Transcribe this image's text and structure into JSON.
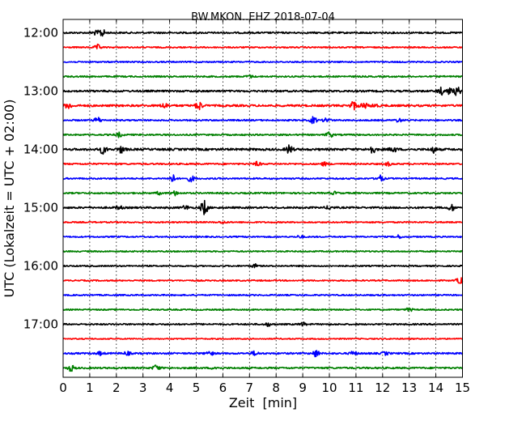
{
  "chart_data": {
    "type": "line",
    "title": "BW.MKON..EHZ 2018-07-04",
    "xlabel": "Zeit  [min]",
    "ylabel": "UTC (Lokalzeit = UTC + 02:00)",
    "xlim": [
      0,
      15
    ],
    "x_ticks": [
      "0",
      "1",
      "2",
      "3",
      "4",
      "5",
      "6",
      "7",
      "8",
      "9",
      "10",
      "11",
      "12",
      "13",
      "14",
      "15"
    ],
    "y_ticks": [
      "12:00",
      "13:00",
      "14:00",
      "15:00",
      "16:00",
      "17:00"
    ],
    "grid": "vertical dotted",
    "trace_colors": [
      "#000000",
      "#ff0000",
      "#0000ff",
      "#008000"
    ],
    "traces": [
      {
        "start": "12:00",
        "base": 1.0,
        "events": [
          [
            1.45,
            5.0
          ],
          [
            1.2,
            2.0
          ]
        ]
      },
      {
        "start": "12:15",
        "base": 0.8,
        "events": [
          [
            1.3,
            3.0
          ]
        ]
      },
      {
        "start": "12:30",
        "base": 0.8,
        "events": []
      },
      {
        "start": "12:45",
        "base": 0.9,
        "events": [
          [
            7.0,
            1.5
          ]
        ]
      },
      {
        "start": "13:00",
        "base": 1.1,
        "events": [
          [
            14.2,
            4.0
          ],
          [
            14.8,
            5.0
          ],
          [
            14.5,
            3.5
          ]
        ]
      },
      {
        "start": "13:15",
        "base": 1.2,
        "events": [
          [
            0.2,
            3.5
          ],
          [
            3.8,
            3.0
          ],
          [
            5.1,
            5.0
          ],
          [
            10.9,
            5.0
          ],
          [
            11.3,
            3.5
          ],
          [
            11.7,
            2.0
          ]
        ]
      },
      {
        "start": "13:30",
        "base": 0.9,
        "events": [
          [
            1.3,
            3.5
          ],
          [
            9.4,
            4.0
          ],
          [
            9.9,
            3.0
          ],
          [
            12.6,
            2.0
          ]
        ]
      },
      {
        "start": "13:45",
        "base": 0.9,
        "events": [
          [
            2.1,
            2.5
          ],
          [
            10.0,
            3.5
          ]
        ]
      },
      {
        "start": "14:00",
        "base": 1.3,
        "events": [
          [
            1.5,
            5.0
          ],
          [
            2.2,
            4.0
          ],
          [
            8.5,
            5.0
          ],
          [
            11.6,
            4.5
          ],
          [
            12.4,
            3.0
          ],
          [
            13.9,
            3.5
          ]
        ]
      },
      {
        "start": "14:15",
        "base": 0.9,
        "events": [
          [
            7.3,
            2.5
          ],
          [
            9.8,
            2.0
          ],
          [
            12.2,
            2.0
          ]
        ]
      },
      {
        "start": "14:30",
        "base": 0.9,
        "events": [
          [
            4.1,
            4.5
          ],
          [
            4.8,
            3.5
          ],
          [
            11.9,
            4.0
          ]
        ]
      },
      {
        "start": "14:45",
        "base": 0.9,
        "events": [
          [
            3.6,
            1.5
          ],
          [
            4.2,
            2.5
          ],
          [
            10.2,
            1.5
          ]
        ]
      },
      {
        "start": "15:00",
        "base": 1.1,
        "events": [
          [
            2.1,
            2.0
          ],
          [
            4.6,
            2.5
          ],
          [
            5.3,
            9.0
          ],
          [
            10.0,
            2.0
          ],
          [
            14.6,
            3.5
          ]
        ]
      },
      {
        "start": "15:15",
        "base": 0.8,
        "events": [
          [
            6.0,
            1.2
          ]
        ]
      },
      {
        "start": "15:30",
        "base": 0.8,
        "events": [
          [
            8.9,
            1.5
          ],
          [
            12.6,
            1.8
          ]
        ]
      },
      {
        "start": "15:45",
        "base": 0.8,
        "events": []
      },
      {
        "start": "16:00",
        "base": 0.8,
        "events": [
          [
            7.2,
            2.0
          ]
        ]
      },
      {
        "start": "16:15",
        "base": 0.8,
        "events": [
          [
            14.9,
            4.0
          ]
        ]
      },
      {
        "start": "16:30",
        "base": 0.8,
        "events": []
      },
      {
        "start": "16:45",
        "base": 0.8,
        "events": [
          [
            13.0,
            2.0
          ]
        ]
      },
      {
        "start": "17:00",
        "base": 0.9,
        "events": [
          [
            7.7,
            2.0
          ],
          [
            9.0,
            2.0
          ]
        ]
      },
      {
        "start": "17:15",
        "base": 0.7,
        "events": []
      },
      {
        "start": "17:30",
        "base": 1.0,
        "events": [
          [
            1.4,
            2.0
          ],
          [
            2.4,
            2.0
          ],
          [
            5.5,
            3.0
          ],
          [
            7.2,
            2.5
          ],
          [
            9.5,
            4.0
          ],
          [
            10.9,
            2.5
          ],
          [
            12.1,
            1.8
          ]
        ]
      },
      {
        "start": "17:45",
        "base": 1.0,
        "events": [
          [
            0.3,
            3.5
          ],
          [
            3.5,
            3.5
          ],
          [
            5.7,
            1.5
          ]
        ]
      }
    ]
  }
}
